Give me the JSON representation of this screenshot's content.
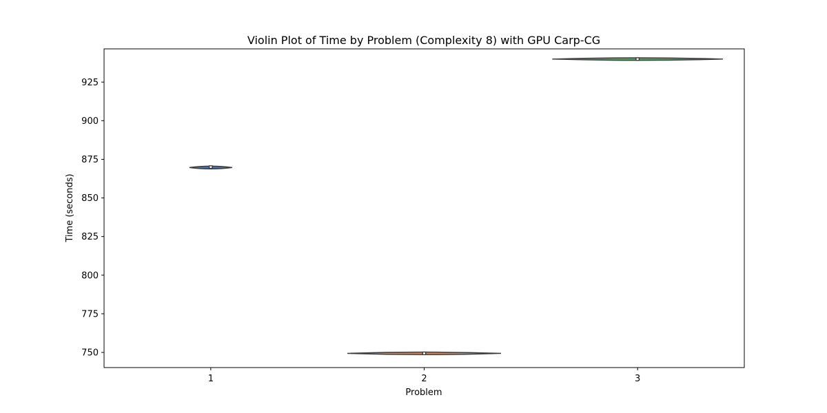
{
  "chart_data": {
    "type": "violin",
    "title": "Violin Plot of Time by Problem (Complexity 8) with GPU Carp-CG",
    "xlabel": "Problem",
    "ylabel": "Time (seconds)",
    "categories": [
      "1",
      "2",
      "3"
    ],
    "yticks": [
      "750",
      "775",
      "800",
      "825",
      "850",
      "875",
      "900",
      "925"
    ],
    "ylim": [
      740.2,
      946.5
    ],
    "grid": false,
    "violins": [
      {
        "category": "1",
        "q1": 869.7,
        "median": 870.0,
        "q3": 870.3,
        "min": 868.8,
        "max": 870.6,
        "half_width_fraction": 0.1,
        "color": "#4c72b0"
      },
      {
        "category": "2",
        "q1": 748.8,
        "median": 749.4,
        "q3": 749.9,
        "min": 748.6,
        "max": 750.2,
        "half_width_fraction": 0.36,
        "color": "#dd8452"
      },
      {
        "category": "3",
        "q1": 939.3,
        "median": 939.9,
        "q3": 940.4,
        "min": 939.1,
        "max": 940.7,
        "half_width_fraction": 0.4,
        "color": "#55a868"
      }
    ]
  }
}
